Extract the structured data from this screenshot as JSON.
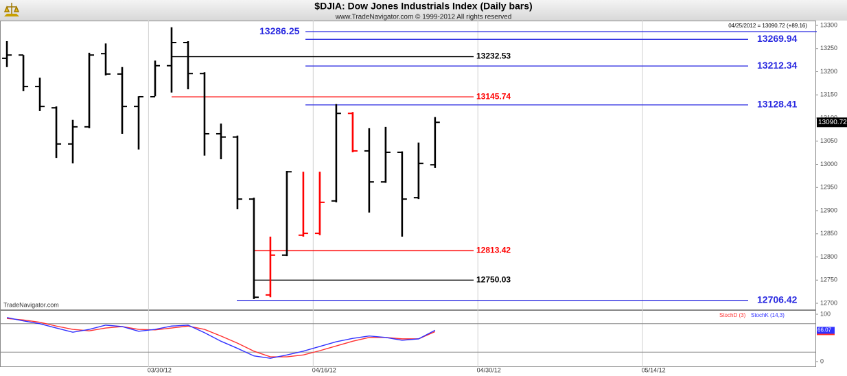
{
  "chart_data": [
    {
      "type": "ohlc",
      "title": "$DJIA:  Dow Jones Industrials Index  (Daily bars)",
      "subtitle": "www.TradeNavigator.com © 1999-2012 All rights reserved",
      "info": "04/25/2012 = 13090.72 (+89.16)",
      "watermark": "TradeNavigator.com",
      "x": [
        0,
        1,
        2,
        3,
        4,
        5,
        6,
        7,
        8,
        9,
        10,
        11,
        12,
        13,
        14,
        15,
        16,
        17,
        18,
        19,
        20,
        21,
        22,
        23,
        24,
        25,
        26
      ],
      "open": [
        13229,
        13236,
        13168,
        13122,
        13044,
        13081,
        13239,
        13195,
        13125,
        13146,
        13213,
        13263,
        13196,
        13066,
        13059,
        12925,
        12718,
        12804,
        12847,
        12851,
        12921,
        13110,
        13029,
        12962,
        13026,
        12928,
        12999
      ],
      "high": [
        13266,
        13236,
        13187,
        13125,
        13096,
        13241,
        13261,
        13210,
        13147,
        13224,
        13296,
        13266,
        13199,
        13088,
        13062,
        12928,
        12844,
        12986,
        12984,
        12984,
        13130,
        13113,
        13078,
        13081,
        13028,
        13047,
        13102
      ],
      "low": [
        13210,
        13158,
        13115,
        13014,
        13002,
        13078,
        13192,
        13066,
        13032,
        13147,
        13155,
        13162,
        13019,
        13011,
        12903,
        12709,
        12713,
        12802,
        12844,
        12847,
        12918,
        13026,
        12896,
        12960,
        12844,
        12925,
        12992
      ],
      "close": [
        13236,
        13168,
        13125,
        13044,
        13081,
        13236,
        13195,
        13125,
        13146,
        13213,
        13263,
        13196,
        13066,
        13059,
        12925,
        12713,
        12804,
        12984,
        12851,
        12918,
        13110,
        13029,
        12962,
        13026,
        12925,
        13002,
        13090.72
      ],
      "colors": [
        "#000",
        "#000",
        "#000",
        "#000",
        "#000",
        "#000",
        "#000",
        "#000",
        "#000",
        "#000",
        "#000",
        "#000",
        "#000",
        "#000",
        "#000",
        "#000",
        "#ff0000",
        "#000",
        "#ff0000",
        "#ff0000",
        "#000",
        "#ff0000",
        "#000",
        "#000",
        "#000",
        "#000",
        "#000"
      ],
      "levels": [
        {
          "value": 13286.25,
          "color": "#2a2ae0"
        },
        {
          "value": 13269.94,
          "color": "#2a2ae0"
        },
        {
          "value": 13232.53,
          "color": "#000000"
        },
        {
          "value": 13212.34,
          "color": "#2a2ae0"
        },
        {
          "value": 13145.74,
          "color": "#ff0000"
        },
        {
          "value": 13128.41,
          "color": "#2a2ae0"
        },
        {
          "value": 12813.42,
          "color": "#ff0000"
        },
        {
          "value": 12750.03,
          "color": "#000000"
        },
        {
          "value": 12706.42,
          "color": "#2a2ae0"
        }
      ],
      "ylim": [
        12685.2,
        13310.4
      ],
      "yticks": [
        12700,
        12750,
        12800,
        12850,
        12900,
        12950,
        13000,
        13050,
        13100,
        13150,
        13200,
        13250,
        13300
      ],
      "xlim": [
        -0.42,
        49.1
      ]
    },
    {
      "type": "line",
      "x": [
        0,
        1,
        2,
        3,
        4,
        5,
        6,
        7,
        8,
        9,
        10,
        11,
        12,
        13,
        14,
        15,
        16,
        17,
        18,
        19,
        20,
        21,
        22,
        23,
        24,
        25,
        26
      ],
      "series": [
        {
          "name": "StochD (3)",
          "color": "#ff3030",
          "values": [
            91,
            88,
            83,
            75,
            68,
            65,
            71,
            74,
            68,
            67,
            71,
            75,
            68,
            54,
            39,
            22,
            10,
            10,
            14,
            23,
            33,
            43,
            51,
            51,
            48,
            48,
            63.19
          ]
        },
        {
          "name": "StochK (14,3)",
          "color": "#3030ff",
          "values": [
            93,
            86,
            80,
            71,
            62,
            68,
            77,
            74,
            64,
            68,
            75,
            77,
            61,
            43,
            28,
            12,
            7,
            14,
            22,
            32,
            42,
            49,
            54,
            51,
            45,
            48,
            66.07
          ]
        }
      ],
      "ylim": [
        -11.6,
        108.7
      ],
      "yticks": [
        0,
        100
      ],
      "guide_lines": [
        20,
        80
      ],
      "xlim": [
        -0.42,
        49.1
      ],
      "xticks": [
        {
          "value": 8.6,
          "label": "03/30/12"
        },
        {
          "value": 18.6,
          "label": "04/16/12"
        },
        {
          "value": 28.6,
          "label": "04/30/12"
        },
        {
          "value": 38.6,
          "label": "05/14/12"
        }
      ]
    }
  ]
}
